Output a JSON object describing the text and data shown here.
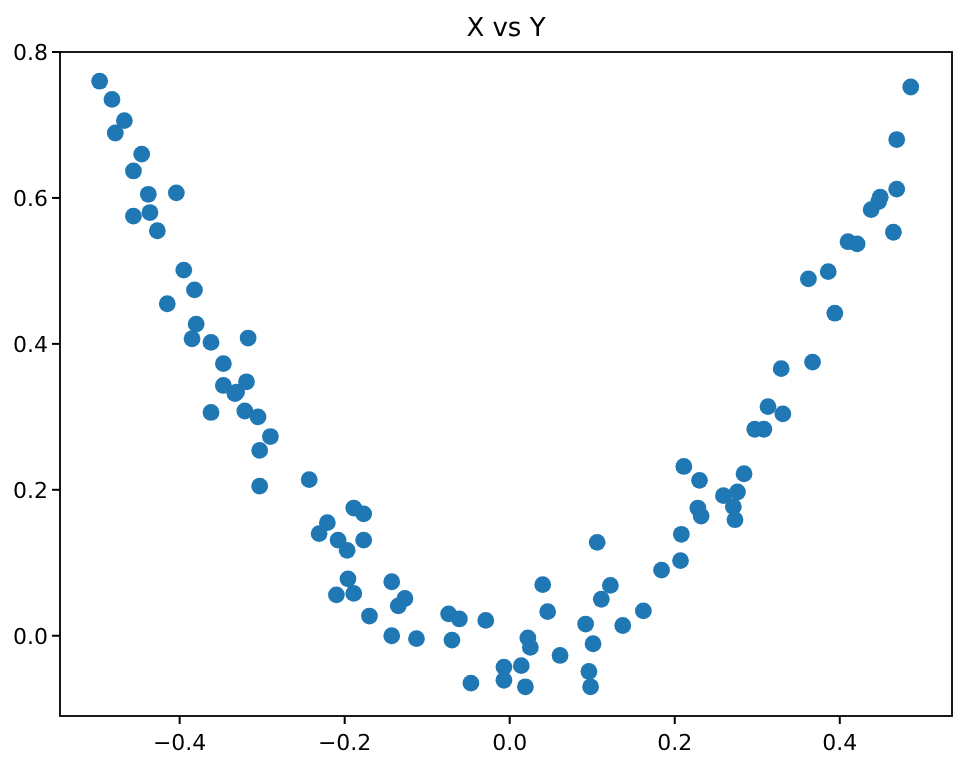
{
  "chart_data": {
    "type": "scatter",
    "title": "X vs Y",
    "marker": "circle",
    "grid": false,
    "xlim": [
      -0.545,
      0.536
    ],
    "ylim": [
      -0.11,
      0.8
    ],
    "xticks": [
      {
        "value": -0.4,
        "label": "−0.4"
      },
      {
        "value": -0.2,
        "label": "−0.2"
      },
      {
        "value": 0,
        "label": "0.0"
      },
      0.2,
      0.4
    ],
    "yticks": [
      {
        "value": 0,
        "label": "0.0"
      },
      0.2,
      0.4,
      0.6,
      0.8
    ],
    "series": [
      {
        "color": "#1f77b4",
        "x": [
          -0.497,
          -0.482,
          -0.467,
          -0.478,
          -0.446,
          -0.456,
          -0.438,
          -0.404,
          -0.456,
          -0.436,
          -0.427,
          -0.395,
          -0.382,
          -0.415,
          -0.38,
          -0.385,
          -0.362,
          -0.317,
          -0.347,
          -0.347,
          -0.319,
          -0.333,
          -0.331,
          -0.362,
          -0.321,
          -0.305,
          -0.29,
          -0.303,
          -0.303,
          -0.243,
          -0.221,
          -0.231,
          -0.208,
          -0.197,
          -0.189,
          -0.177,
          -0.177,
          -0.196,
          -0.21,
          -0.189,
          -0.143,
          -0.127,
          -0.135,
          -0.17,
          -0.143,
          -0.113,
          -0.074,
          -0.061,
          -0.07,
          -0.047,
          -0.029,
          -0.007,
          -0.007,
          0.014,
          0.019,
          0.022,
          0.025,
          0.04,
          0.046,
          0.061,
          0.092,
          0.096,
          0.098,
          0.101,
          0.106,
          0.111,
          0.122,
          0.137,
          0.162,
          0.184,
          0.207,
          0.208,
          0.211,
          0.23,
          0.228,
          0.232,
          0.259,
          0.276,
          0.271,
          0.273,
          0.284,
          0.297,
          0.308,
          0.313,
          0.331,
          0.486,
          0.469,
          0.469,
          0.449,
          0.447,
          0.438,
          0.465,
          0.41,
          0.421,
          0.386,
          0.362,
          0.394,
          0.329,
          0.367
        ],
        "values": [
          0.76,
          0.735,
          0.706,
          0.689,
          0.66,
          0.637,
          0.605,
          0.607,
          0.575,
          0.58,
          0.555,
          0.501,
          0.474,
          0.455,
          0.427,
          0.407,
          0.402,
          0.408,
          0.373,
          0.343,
          0.348,
          0.332,
          0.334,
          0.306,
          0.308,
          0.3,
          0.273,
          0.254,
          0.205,
          0.214,
          0.155,
          0.14,
          0.131,
          0.117,
          0.175,
          0.167,
          0.131,
          0.078,
          0.056,
          0.058,
          0.074,
          0.051,
          0.041,
          0.027,
          0,
          -0.004,
          0.03,
          0.023,
          -0.006,
          -0.065,
          0.021,
          -0.043,
          -0.061,
          -0.041,
          -0.07,
          -0.003,
          -0.016,
          0.07,
          0.033,
          -0.027,
          0.016,
          -0.049,
          -0.07,
          -0.011,
          0.128,
          0.05,
          0.069,
          0.014,
          0.034,
          0.09,
          0.103,
          0.139,
          0.232,
          0.213,
          0.175,
          0.164,
          0.192,
          0.197,
          0.177,
          0.159,
          0.222,
          0.283,
          0.283,
          0.314,
          0.304,
          0.752,
          0.68,
          0.612,
          0.601,
          0.595,
          0.584,
          0.553,
          0.54,
          0.537,
          0.499,
          0.489,
          0.442,
          0.366,
          0.375
        ]
      }
    ]
  }
}
